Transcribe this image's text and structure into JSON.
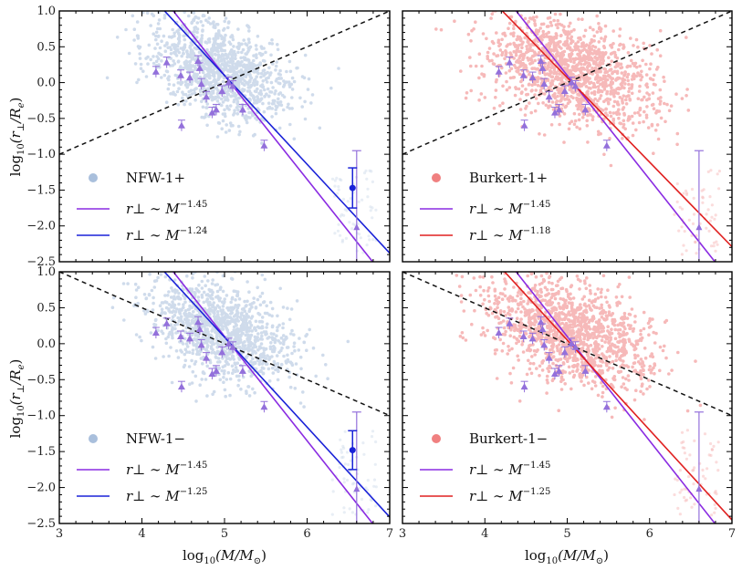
{
  "chart_data": [
    {
      "type": "scatter",
      "name": "panel-top-left",
      "xlim": [
        3,
        7
      ],
      "ylim": [
        -2.5,
        1.0
      ],
      "scatter_color": "#a9bfdc",
      "legend": {
        "marker_label": "NFW-1+",
        "lines": [
          {
            "text": "r⊥ ∼ M",
            "exponent": "−1.45",
            "color": "#8a2be2"
          },
          {
            "text": "r⊥ ∼ M",
            "exponent": "−1.24",
            "color": "#1a22d8"
          }
        ]
      },
      "reference_line": {
        "slope": 0.5,
        "intercept": 0.0,
        "color": "#111111",
        "style": "dashed"
      },
      "fit_lines": [
        {
          "slope": -1.45,
          "x0": 4.0,
          "y0": 1.55,
          "color": "#8a2be2"
        },
        {
          "slope": -1.24,
          "x0": 4.0,
          "y0": 1.34,
          "color": "#1a22d8"
        }
      ],
      "cloud": {
        "center_x": 4.95,
        "center_y": 0.18,
        "sigma_x": 0.42,
        "sigma_y": 0.32,
        "tilt": -0.35,
        "count": 1200
      },
      "error_point": {
        "x": 6.55,
        "y": -1.47,
        "yerr": 0.28,
        "color": "#1a22d8"
      },
      "triangles": [
        {
          "x": 4.17,
          "y": 0.15
        },
        {
          "x": 4.3,
          "y": 0.28
        },
        {
          "x": 4.47,
          "y": 0.1
        },
        {
          "x": 4.58,
          "y": 0.07
        },
        {
          "x": 4.68,
          "y": 0.3
        },
        {
          "x": 4.7,
          "y": 0.2
        },
        {
          "x": 4.72,
          "y": -0.02
        },
        {
          "x": 4.78,
          "y": -0.2
        },
        {
          "x": 4.85,
          "y": -0.42
        },
        {
          "x": 4.9,
          "y": -0.38
        },
        {
          "x": 4.97,
          "y": -0.12
        },
        {
          "x": 5.05,
          "y": 0.0
        },
        {
          "x": 5.1,
          "y": -0.05
        },
        {
          "x": 5.22,
          "y": -0.38
        },
        {
          "x": 4.48,
          "y": -0.6
        },
        {
          "x": 5.48,
          "y": -0.88
        }
      ],
      "triangle_color": "#9370db",
      "wide_error": {
        "x": 6.6,
        "y": -2.02,
        "ylow": -2.5,
        "yhigh": -0.95
      }
    },
    {
      "type": "scatter",
      "name": "panel-top-right",
      "xlim": [
        3,
        7
      ],
      "ylim": [
        -2.5,
        1.0
      ],
      "scatter_color": "#f08080",
      "legend": {
        "marker_label": "Burkert-1+",
        "lines": [
          {
            "text": "r⊥ ∼ M",
            "exponent": "−1.45",
            "color": "#8a2be2"
          },
          {
            "text": "r⊥ ∼ M",
            "exponent": "−1.18",
            "color": "#e02020"
          }
        ]
      },
      "reference_line": {
        "slope": 0.5,
        "intercept": 0.0,
        "color": "#111111",
        "style": "dashed"
      },
      "fit_lines": [
        {
          "slope": -1.45,
          "x0": 4.0,
          "y0": 1.55,
          "color": "#8a2be2"
        },
        {
          "slope": -1.18,
          "x0": 4.0,
          "y0": 1.25,
          "color": "#e02020"
        }
      ],
      "cloud": {
        "center_x": 5.05,
        "center_y": 0.15,
        "sigma_x": 0.5,
        "sigma_y": 0.35,
        "tilt": -0.32,
        "count": 1400
      },
      "error_point": null,
      "triangles": [
        {
          "x": 4.17,
          "y": 0.15
        },
        {
          "x": 4.3,
          "y": 0.28
        },
        {
          "x": 4.47,
          "y": 0.1
        },
        {
          "x": 4.58,
          "y": 0.07
        },
        {
          "x": 4.68,
          "y": 0.3
        },
        {
          "x": 4.7,
          "y": 0.2
        },
        {
          "x": 4.72,
          "y": -0.02
        },
        {
          "x": 4.78,
          "y": -0.2
        },
        {
          "x": 4.85,
          "y": -0.42
        },
        {
          "x": 4.9,
          "y": -0.38
        },
        {
          "x": 4.97,
          "y": -0.12
        },
        {
          "x": 5.05,
          "y": 0.0
        },
        {
          "x": 5.1,
          "y": -0.05
        },
        {
          "x": 5.22,
          "y": -0.38
        },
        {
          "x": 4.48,
          "y": -0.6
        },
        {
          "x": 5.48,
          "y": -0.88
        }
      ],
      "triangle_color": "#9370db",
      "wide_error": {
        "x": 6.6,
        "y": -2.02,
        "ylow": -2.5,
        "yhigh": -0.95
      }
    },
    {
      "type": "scatter",
      "name": "panel-bottom-left",
      "xlim": [
        3,
        7
      ],
      "ylim": [
        -2.5,
        1.0
      ],
      "scatter_color": "#a9bfdc",
      "legend": {
        "marker_label": "NFW-1−",
        "lines": [
          {
            "text": "r⊥ ∼ M",
            "exponent": "−1.45",
            "color": "#8a2be2"
          },
          {
            "text": "r⊥ ∼ M",
            "exponent": "−1.25",
            "color": "#1a22d8"
          }
        ]
      },
      "reference_line": {
        "slope": -0.5,
        "intercept": 0.0,
        "color": "#111111",
        "style": "dashed"
      },
      "fit_lines": [
        {
          "slope": -1.45,
          "x0": 4.0,
          "y0": 1.55,
          "color": "#8a2be2"
        },
        {
          "slope": -1.25,
          "x0": 4.0,
          "y0": 1.34,
          "color": "#1a22d8"
        }
      ],
      "cloud": {
        "center_x": 4.95,
        "center_y": 0.18,
        "sigma_x": 0.42,
        "sigma_y": 0.32,
        "tilt": -0.35,
        "count": 1200
      },
      "error_point": {
        "x": 6.55,
        "y": -1.48,
        "yerr": 0.27,
        "color": "#1a22d8"
      },
      "triangles": [
        {
          "x": 4.17,
          "y": 0.15
        },
        {
          "x": 4.3,
          "y": 0.28
        },
        {
          "x": 4.47,
          "y": 0.1
        },
        {
          "x": 4.58,
          "y": 0.07
        },
        {
          "x": 4.68,
          "y": 0.3
        },
        {
          "x": 4.7,
          "y": 0.2
        },
        {
          "x": 4.72,
          "y": -0.02
        },
        {
          "x": 4.78,
          "y": -0.2
        },
        {
          "x": 4.85,
          "y": -0.42
        },
        {
          "x": 4.9,
          "y": -0.38
        },
        {
          "x": 4.97,
          "y": -0.12
        },
        {
          "x": 5.05,
          "y": 0.0
        },
        {
          "x": 5.1,
          "y": -0.05
        },
        {
          "x": 5.22,
          "y": -0.38
        },
        {
          "x": 4.48,
          "y": -0.6
        },
        {
          "x": 5.48,
          "y": -0.88
        }
      ],
      "triangle_color": "#9370db",
      "wide_error": {
        "x": 6.6,
        "y": -2.02,
        "ylow": -2.5,
        "yhigh": -0.95
      }
    },
    {
      "type": "scatter",
      "name": "panel-bottom-right",
      "xlim": [
        3,
        7
      ],
      "ylim": [
        -2.5,
        1.0
      ],
      "scatter_color": "#f08080",
      "legend": {
        "marker_label": "Burkert-1−",
        "lines": [
          {
            "text": "r⊥ ∼ M",
            "exponent": "−1.45",
            "color": "#8a2be2"
          },
          {
            "text": "r⊥ ∼ M",
            "exponent": "−1.25",
            "color": "#e02020"
          }
        ]
      },
      "reference_line": {
        "slope": -0.5,
        "intercept": 0.0,
        "color": "#111111",
        "style": "dashed"
      },
      "fit_lines": [
        {
          "slope": -1.45,
          "x0": 4.0,
          "y0": 1.55,
          "color": "#8a2be2"
        },
        {
          "slope": -1.25,
          "x0": 4.0,
          "y0": 1.3,
          "color": "#e02020"
        }
      ],
      "cloud": {
        "center_x": 5.05,
        "center_y": 0.15,
        "sigma_x": 0.5,
        "sigma_y": 0.35,
        "tilt": -0.32,
        "count": 1400
      },
      "error_point": null,
      "triangles": [
        {
          "x": 4.17,
          "y": 0.15
        },
        {
          "x": 4.3,
          "y": 0.28
        },
        {
          "x": 4.47,
          "y": 0.1
        },
        {
          "x": 4.58,
          "y": 0.07
        },
        {
          "x": 4.68,
          "y": 0.3
        },
        {
          "x": 4.7,
          "y": 0.2
        },
        {
          "x": 4.72,
          "y": -0.02
        },
        {
          "x": 4.78,
          "y": -0.2
        },
        {
          "x": 4.85,
          "y": -0.42
        },
        {
          "x": 4.9,
          "y": -0.38
        },
        {
          "x": 4.97,
          "y": -0.12
        },
        {
          "x": 5.05,
          "y": 0.0
        },
        {
          "x": 5.1,
          "y": -0.05
        },
        {
          "x": 5.22,
          "y": -0.38
        },
        {
          "x": 4.48,
          "y": -0.6
        },
        {
          "x": 5.48,
          "y": -0.88
        }
      ],
      "triangle_color": "#9370db",
      "wide_error": {
        "x": 6.6,
        "y": -2.02,
        "ylow": -2.5,
        "yhigh": -0.95
      }
    }
  ],
  "axes": {
    "x_ticks": [
      "3",
      "4",
      "5",
      "6",
      "7"
    ],
    "y_ticks": [
      "1.0",
      "0.5",
      "0.0",
      "−0.5",
      "−1.0",
      "−1.5",
      "−2.0",
      "−2.5"
    ],
    "xlabel_prefix": "log",
    "xlabel_sub": "10",
    "xlabel_body": "(M/M",
    "xlabel_sun": "⊙",
    "xlabel_close": ")",
    "ylabel_prefix": "log",
    "ylabel_sub": "10",
    "ylabel_body": "(r",
    "ylabel_perp": "⊥",
    "ylabel_mid": "/R",
    "ylabel_e": "e",
    "ylabel_close": ")"
  }
}
